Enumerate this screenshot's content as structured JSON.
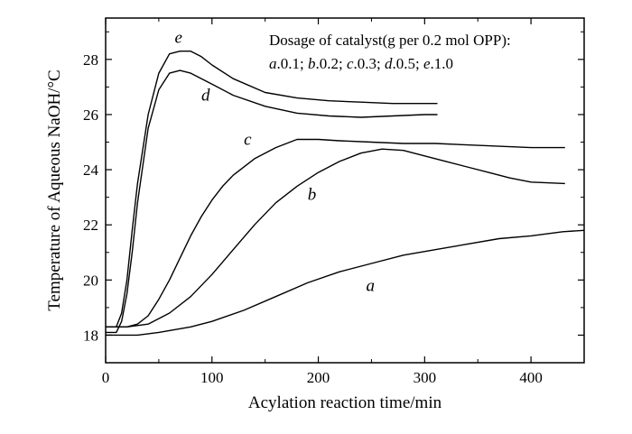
{
  "chart_data": {
    "type": "line",
    "xlabel": "Acylation reaction time/min",
    "ylabel": "Temperature of Aqueous NaOH/°C",
    "xlim": [
      0,
      450
    ],
    "ylim": [
      17,
      29.5
    ],
    "xticks": [
      0,
      100,
      200,
      300,
      400
    ],
    "yticks": [
      18,
      20,
      22,
      24,
      26,
      28
    ],
    "grid": false,
    "legend": {
      "title": "Dosage of catalyst(g per 0.2 mol OPP):",
      "entries": [
        {
          "letter": "a",
          "value": "0.1"
        },
        {
          "letter": "b",
          "value": "0.2"
        },
        {
          "letter": "c",
          "value": "0.3"
        },
        {
          "letter": "d",
          "value": "0.5"
        },
        {
          "letter": "e",
          "value": "1.0"
        }
      ],
      "placement": "top-right"
    },
    "series": [
      {
        "name": "a",
        "label_at": [
          245,
          19.6
        ],
        "x": [
          0,
          30,
          50,
          80,
          100,
          130,
          160,
          190,
          220,
          250,
          280,
          310,
          340,
          370,
          400,
          430,
          450
        ],
        "y": [
          18.0,
          18.0,
          18.1,
          18.3,
          18.5,
          18.9,
          19.4,
          19.9,
          20.3,
          20.6,
          20.9,
          21.1,
          21.3,
          21.5,
          21.6,
          21.75,
          21.8
        ]
      },
      {
        "name": "b",
        "label_at": [
          190,
          22.9
        ],
        "x": [
          0,
          20,
          40,
          60,
          80,
          100,
          120,
          140,
          160,
          180,
          200,
          220,
          240,
          260,
          280,
          300,
          320,
          340,
          360,
          380,
          400,
          432
        ],
        "y": [
          18.3,
          18.3,
          18.4,
          18.8,
          19.4,
          20.2,
          21.1,
          22.0,
          22.8,
          23.4,
          23.9,
          24.3,
          24.6,
          24.75,
          24.7,
          24.5,
          24.3,
          24.1,
          23.9,
          23.7,
          23.55,
          23.5
        ]
      },
      {
        "name": "c",
        "label_at": [
          130,
          24.9
        ],
        "x": [
          0,
          20,
          30,
          40,
          50,
          60,
          70,
          80,
          90,
          100,
          110,
          120,
          140,
          160,
          180,
          200,
          220,
          250,
          280,
          310,
          340,
          370,
          400,
          432
        ],
        "y": [
          18.3,
          18.3,
          18.4,
          18.7,
          19.3,
          20.0,
          20.8,
          21.6,
          22.3,
          22.9,
          23.4,
          23.8,
          24.4,
          24.8,
          25.1,
          25.1,
          25.05,
          25.0,
          24.95,
          24.95,
          24.9,
          24.85,
          24.8,
          24.8
        ]
      },
      {
        "name": "d",
        "label_at": [
          90,
          26.5
        ],
        "x": [
          0,
          10,
          15,
          20,
          25,
          30,
          40,
          50,
          60,
          70,
          80,
          100,
          120,
          150,
          180,
          210,
          240,
          270,
          300,
          312
        ],
        "y": [
          18.1,
          18.1,
          18.5,
          19.5,
          21.0,
          22.8,
          25.5,
          26.9,
          27.5,
          27.6,
          27.5,
          27.1,
          26.7,
          26.3,
          26.05,
          25.95,
          25.9,
          25.95,
          26.0,
          26.0
        ]
      },
      {
        "name": "e",
        "label_at": [
          65,
          28.6
        ],
        "x": [
          0,
          10,
          15,
          20,
          25,
          30,
          40,
          50,
          60,
          70,
          80,
          90,
          100,
          120,
          150,
          180,
          210,
          240,
          270,
          300,
          312
        ],
        "y": [
          18.3,
          18.3,
          18.8,
          20.0,
          21.8,
          23.5,
          26.0,
          27.5,
          28.2,
          28.3,
          28.3,
          28.1,
          27.8,
          27.3,
          26.8,
          26.6,
          26.5,
          26.45,
          26.4,
          26.4,
          26.4
        ]
      }
    ]
  }
}
